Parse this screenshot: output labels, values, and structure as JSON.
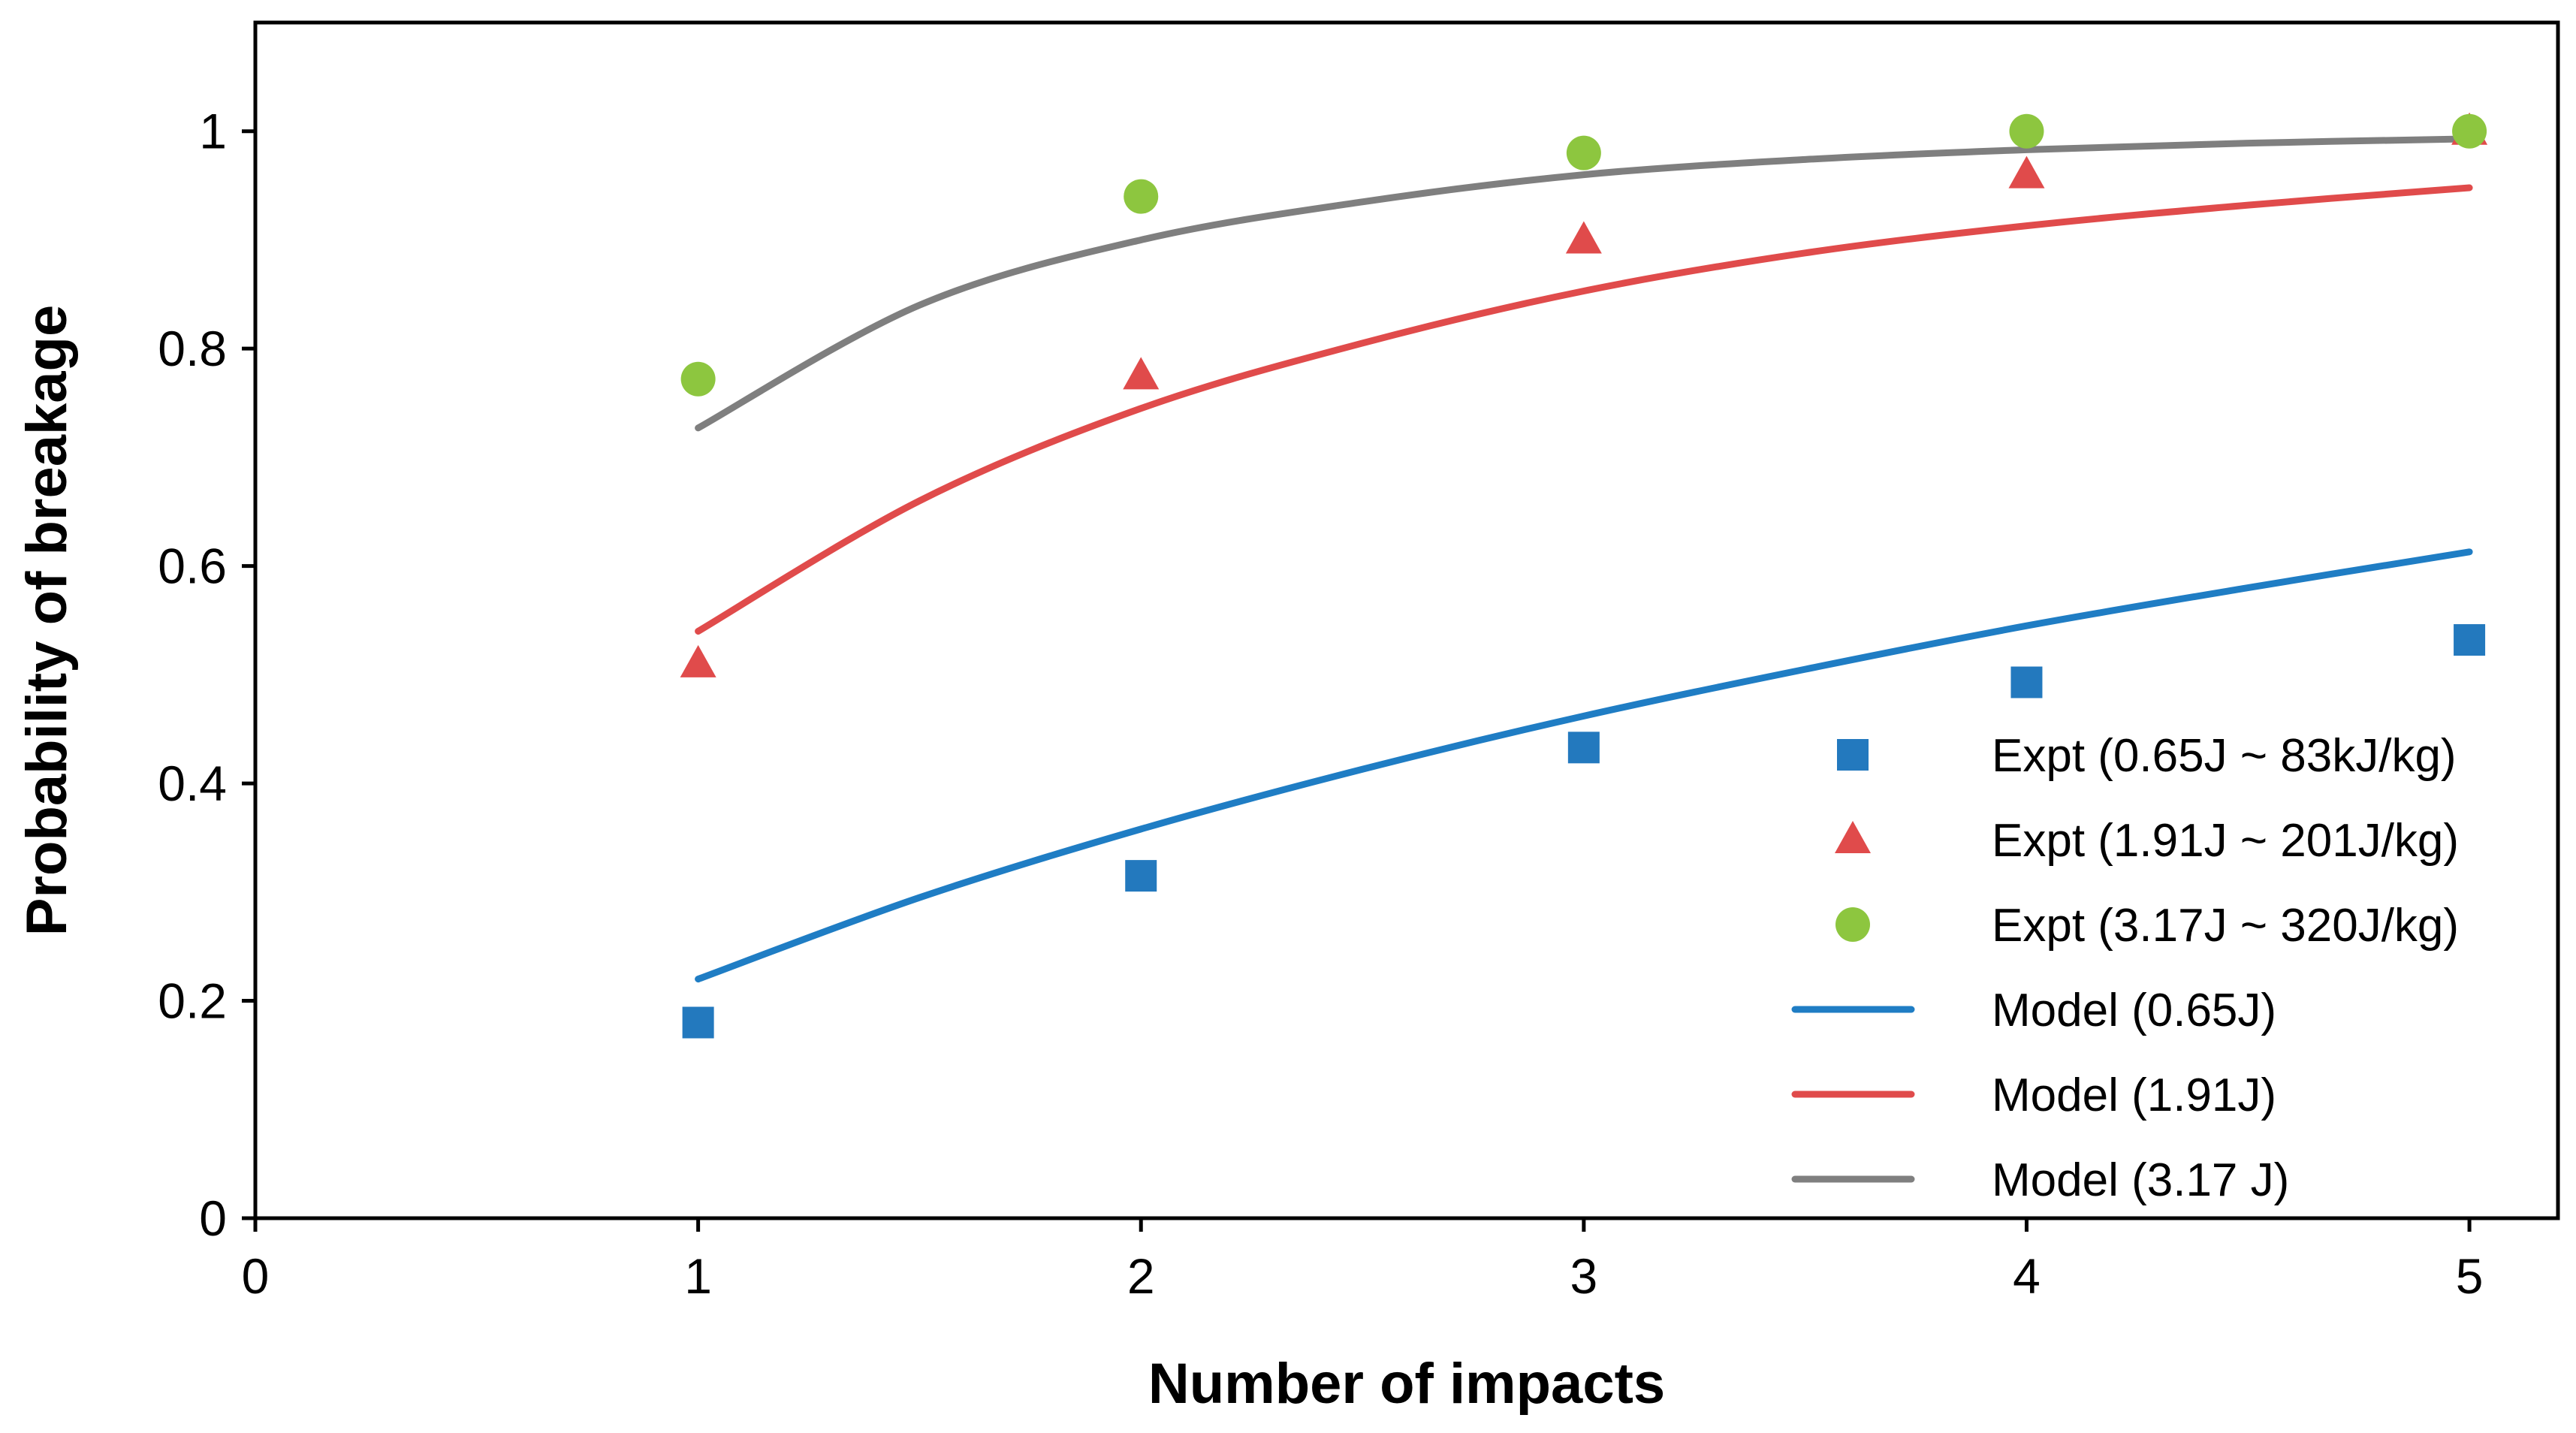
{
  "chart_data": {
    "type": "scatter",
    "title": "",
    "xlabel": "Number of impacts",
    "ylabel": "Probability of breakage",
    "xlim": [
      0,
      5.2
    ],
    "ylim": [
      0,
      1.1
    ],
    "x_ticks": [
      0,
      1,
      2,
      3,
      4,
      5
    ],
    "y_ticks": [
      0,
      0.2,
      0.4,
      0.6,
      0.8,
      1
    ],
    "x_tick_labels": [
      "0",
      "1",
      "2",
      "3",
      "4",
      "5"
    ],
    "y_tick_labels": [
      "0",
      "0.2",
      "0.4",
      "0.6",
      "0.8",
      "1"
    ],
    "grid": false,
    "legend_position": "bottom-right",
    "series": [
      {
        "name": "Expt (0.65J ~ 83kJ/kg)",
        "kind": "markers",
        "marker": "square",
        "color": "#2379BE",
        "x": [
          1,
          2,
          3,
          4,
          5
        ],
        "y": [
          0.18,
          0.315,
          0.433,
          0.493,
          0.532
        ]
      },
      {
        "name": "Expt (1.91J ~ 201J/kg)",
        "kind": "markers",
        "marker": "triangle",
        "color": "#E04B4B",
        "x": [
          1,
          2,
          3,
          4,
          5
        ],
        "y": [
          0.51,
          0.775,
          0.9,
          0.96,
          1.0
        ]
      },
      {
        "name": "Expt (3.17J ~ 320J/kg)",
        "kind": "markers",
        "marker": "circle",
        "color": "#8DC63F",
        "x": [
          1,
          2,
          3,
          4,
          5
        ],
        "y": [
          0.772,
          0.94,
          0.98,
          1.0,
          1.0
        ]
      },
      {
        "name": "Model (0.65J)",
        "kind": "line",
        "color": "#1F7DC4",
        "x": [
          1,
          1.5,
          2,
          2.5,
          3,
          3.5,
          4,
          4.5,
          5
        ],
        "y": [
          0.22,
          0.295,
          0.358,
          0.413,
          0.462,
          0.505,
          0.545,
          0.58,
          0.613
        ]
      },
      {
        "name": "Model (1.91J)",
        "kind": "line",
        "color": "#E04B4B",
        "x": [
          1,
          1.5,
          2,
          2.5,
          3,
          3.5,
          4,
          4.5,
          5
        ],
        "y": [
          0.54,
          0.66,
          0.745,
          0.805,
          0.853,
          0.888,
          0.913,
          0.932,
          0.948
        ]
      },
      {
        "name": "Model (3.17 J)",
        "kind": "line",
        "color": "#7F7F7F",
        "x": [
          1,
          1.5,
          2,
          2.5,
          3,
          3.5,
          4,
          4.5,
          5
        ],
        "y": [
          0.727,
          0.84,
          0.9,
          0.935,
          0.96,
          0.974,
          0.983,
          0.989,
          0.993
        ]
      }
    ]
  }
}
